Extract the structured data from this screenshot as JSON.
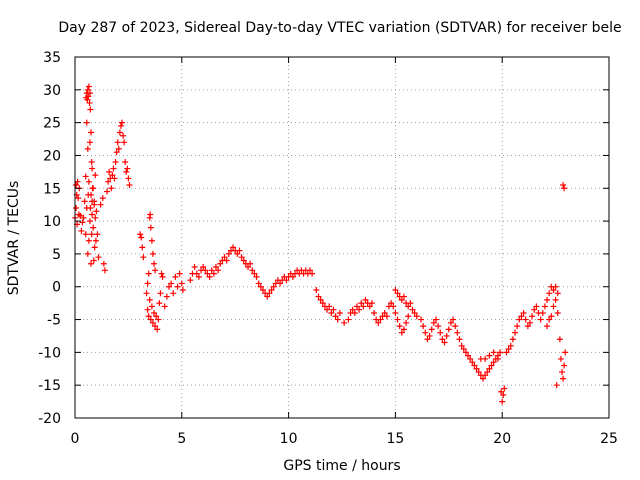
{
  "chart_data": {
    "type": "scatter",
    "title": "Day 287 of 2023, Sidereal Day-to-day VTEC variation (SDTVAR) for receiver bele",
    "xlabel": "GPS time / hours",
    "ylabel": "SDTVAR / TECUs",
    "xlim": [
      0,
      25
    ],
    "ylim": [
      -20,
      35
    ],
    "xticks": [
      "0",
      "5",
      "10",
      "15",
      "20",
      "25"
    ],
    "yticks": [
      "-20",
      "-15",
      "-10",
      "-5",
      "0",
      "5",
      "10",
      "15",
      "20",
      "25",
      "30",
      "35"
    ],
    "grid": true,
    "marker": "+",
    "color": "#ff0000",
    "series": [
      {
        "name": "SDTVAR",
        "points": [
          [
            0.0,
            10.5
          ],
          [
            0.05,
            12
          ],
          [
            0.05,
            15.5
          ],
          [
            0.08,
            14
          ],
          [
            0.1,
            9.5
          ],
          [
            0.12,
            16
          ],
          [
            0.15,
            13.5
          ],
          [
            0.18,
            11
          ],
          [
            0.2,
            15
          ],
          [
            0.25,
            10.8
          ],
          [
            0.3,
            8.5
          ],
          [
            0.35,
            9.8
          ],
          [
            0.4,
            10.5
          ],
          [
            0.45,
            13
          ],
          [
            0.5,
            16.8
          ],
          [
            0.52,
            28.8
          ],
          [
            0.55,
            29.5
          ],
          [
            0.58,
            28.5
          ],
          [
            0.6,
            30
          ],
          [
            0.62,
            29
          ],
          [
            0.65,
            30.5
          ],
          [
            0.68,
            28
          ],
          [
            0.7,
            29.5
          ],
          [
            0.72,
            27
          ],
          [
            0.75,
            23.5
          ],
          [
            0.78,
            19
          ],
          [
            0.8,
            18
          ],
          [
            0.5,
            8
          ],
          [
            0.55,
            12
          ],
          [
            0.6,
            5
          ],
          [
            0.62,
            14
          ],
          [
            0.65,
            7
          ],
          [
            0.7,
            10
          ],
          [
            0.72,
            12
          ],
          [
            0.75,
            3.5
          ],
          [
            0.78,
            8
          ],
          [
            0.8,
            11
          ],
          [
            0.82,
            15
          ],
          [
            0.85,
            9
          ],
          [
            0.88,
            4
          ],
          [
            0.9,
            13
          ],
          [
            0.92,
            6
          ],
          [
            0.95,
            10.5
          ],
          [
            0.98,
            7
          ],
          [
            1.0,
            11.5
          ],
          [
            1.05,
            8
          ],
          [
            1.1,
            4.5
          ],
          [
            0.55,
            25
          ],
          [
            0.6,
            21
          ],
          [
            0.65,
            16
          ],
          [
            0.7,
            22
          ],
          [
            0.75,
            14
          ],
          [
            0.8,
            13
          ],
          [
            0.85,
            15
          ],
          [
            0.9,
            12.5
          ],
          [
            0.95,
            17
          ],
          [
            1.2,
            12.5
          ],
          [
            1.3,
            13.5
          ],
          [
            1.35,
            3.5
          ],
          [
            1.4,
            2.5
          ],
          [
            1.5,
            14.5
          ],
          [
            1.55,
            16
          ],
          [
            1.6,
            17.5
          ],
          [
            1.65,
            16.5
          ],
          [
            1.7,
            15
          ],
          [
            1.75,
            17
          ],
          [
            1.8,
            18
          ],
          [
            1.85,
            16.5
          ],
          [
            1.9,
            19
          ],
          [
            1.95,
            20.5
          ],
          [
            2.0,
            22
          ],
          [
            2.05,
            21
          ],
          [
            2.1,
            23.5
          ],
          [
            2.15,
            24.5
          ],
          [
            2.2,
            25
          ],
          [
            2.25,
            23
          ],
          [
            2.3,
            22
          ],
          [
            2.35,
            19
          ],
          [
            2.4,
            17.5
          ],
          [
            2.45,
            18
          ],
          [
            2.5,
            16.5
          ],
          [
            2.55,
            15.5
          ],
          [
            3.05,
            8
          ],
          [
            3.1,
            7.5
          ],
          [
            3.15,
            6
          ],
          [
            3.2,
            4.5
          ],
          [
            3.35,
            -1
          ],
          [
            3.4,
            -3.5
          ],
          [
            3.45,
            -4.5
          ],
          [
            3.5,
            -2
          ],
          [
            3.55,
            -5
          ],
          [
            3.6,
            -3
          ],
          [
            3.65,
            -5.5
          ],
          [
            3.7,
            -4
          ],
          [
            3.75,
            -6
          ],
          [
            3.8,
            -4.5
          ],
          [
            3.85,
            -6.5
          ],
          [
            3.9,
            -5
          ],
          [
            3.95,
            -2.5
          ],
          [
            4.0,
            -1
          ],
          [
            4.05,
            2
          ],
          [
            4.1,
            1.5
          ],
          [
            3.4,
            0.5
          ],
          [
            3.45,
            2
          ],
          [
            3.5,
            10.5
          ],
          [
            3.52,
            11
          ],
          [
            3.55,
            9
          ],
          [
            3.6,
            7
          ],
          [
            3.65,
            5
          ],
          [
            3.7,
            3.5
          ],
          [
            3.75,
            2.5
          ],
          [
            4.2,
            -3
          ],
          [
            4.3,
            -1.5
          ],
          [
            4.4,
            0
          ],
          [
            4.5,
            0.5
          ],
          [
            4.6,
            -1
          ],
          [
            4.7,
            1.5
          ],
          [
            4.8,
            0
          ],
          [
            4.9,
            2
          ],
          [
            5.0,
            0.5
          ],
          [
            5.05,
            -0.5
          ],
          [
            5.4,
            1
          ],
          [
            5.5,
            2
          ],
          [
            5.6,
            3
          ],
          [
            5.7,
            2
          ],
          [
            5.8,
            1.5
          ],
          [
            5.9,
            2.5
          ],
          [
            6.0,
            3
          ],
          [
            6.1,
            2.5
          ],
          [
            6.2,
            2
          ],
          [
            6.3,
            1.5
          ],
          [
            6.4,
            2.5
          ],
          [
            6.5,
            2
          ],
          [
            6.6,
            3
          ],
          [
            6.7,
            2.5
          ],
          [
            6.8,
            3.5
          ],
          [
            6.9,
            4
          ],
          [
            7.0,
            4.5
          ],
          [
            7.1,
            4
          ],
          [
            7.2,
            5
          ],
          [
            7.3,
            5.5
          ],
          [
            7.4,
            6
          ],
          [
            7.5,
            5.5
          ],
          [
            7.6,
            5
          ],
          [
            7.7,
            5.5
          ],
          [
            7.8,
            4.5
          ],
          [
            7.9,
            4
          ],
          [
            8.0,
            3.5
          ],
          [
            8.1,
            3
          ],
          [
            8.2,
            3.5
          ],
          [
            8.3,
            2.5
          ],
          [
            8.4,
            2
          ],
          [
            8.5,
            1.5
          ],
          [
            8.6,
            0.5
          ],
          [
            8.7,
            0
          ],
          [
            8.8,
            -0.5
          ],
          [
            8.9,
            -1
          ],
          [
            9.0,
            -1.5
          ],
          [
            9.1,
            -1
          ],
          [
            9.2,
            -0.5
          ],
          [
            9.3,
            0
          ],
          [
            9.4,
            0.5
          ],
          [
            9.5,
            1
          ],
          [
            9.6,
            0.5
          ],
          [
            9.7,
            1
          ],
          [
            9.8,
            1.5
          ],
          [
            9.9,
            1
          ],
          [
            10.0,
            1.5
          ],
          [
            10.1,
            2
          ],
          [
            10.2,
            1.5
          ],
          [
            10.3,
            2
          ],
          [
            10.4,
            2.5
          ],
          [
            10.5,
            2
          ],
          [
            10.6,
            2.5
          ],
          [
            10.7,
            2
          ],
          [
            10.8,
            2.5
          ],
          [
            10.9,
            2
          ],
          [
            11.0,
            2.5
          ],
          [
            11.1,
            2
          ],
          [
            11.3,
            -0.5
          ],
          [
            11.4,
            -1.5
          ],
          [
            11.5,
            -2
          ],
          [
            11.6,
            -2.5
          ],
          [
            11.7,
            -3
          ],
          [
            11.8,
            -3.5
          ],
          [
            11.9,
            -3
          ],
          [
            12.0,
            -4
          ],
          [
            12.1,
            -3.5
          ],
          [
            12.2,
            -4.5
          ],
          [
            12.3,
            -5
          ],
          [
            12.4,
            -4
          ],
          [
            12.6,
            -5.5
          ],
          [
            12.8,
            -5
          ],
          [
            12.9,
            -4
          ],
          [
            13.0,
            -3.5
          ],
          [
            13.1,
            -4
          ],
          [
            13.2,
            -3
          ],
          [
            13.3,
            -3.5
          ],
          [
            13.4,
            -2.5
          ],
          [
            13.5,
            -3
          ],
          [
            13.6,
            -2
          ],
          [
            13.7,
            -2.5
          ],
          [
            13.8,
            -3
          ],
          [
            13.9,
            -2.5
          ],
          [
            14.0,
            -4
          ],
          [
            14.1,
            -5
          ],
          [
            14.2,
            -5.5
          ],
          [
            14.3,
            -5
          ],
          [
            14.4,
            -4.5
          ],
          [
            14.5,
            -4
          ],
          [
            14.6,
            -4.5
          ],
          [
            14.7,
            -3
          ],
          [
            14.8,
            -2.5
          ],
          [
            14.9,
            -3
          ],
          [
            15.0,
            -4
          ],
          [
            15.1,
            -5
          ],
          [
            15.2,
            -6
          ],
          [
            15.3,
            -7
          ],
          [
            15.4,
            -6.5
          ],
          [
            15.5,
            -5.5
          ],
          [
            15.6,
            -4.5
          ],
          [
            15.0,
            -0.5
          ],
          [
            15.1,
            -1
          ],
          [
            15.2,
            -1.5
          ],
          [
            15.3,
            -2
          ],
          [
            15.4,
            -1.5
          ],
          [
            15.5,
            -2.5
          ],
          [
            15.6,
            -3
          ],
          [
            15.7,
            -2.5
          ],
          [
            15.8,
            -3.5
          ],
          [
            15.9,
            -4
          ],
          [
            16.0,
            -4.5
          ],
          [
            16.2,
            -5
          ],
          [
            16.3,
            -6
          ],
          [
            16.4,
            -7
          ],
          [
            16.5,
            -8
          ],
          [
            16.6,
            -7.5
          ],
          [
            16.7,
            -6.5
          ],
          [
            16.8,
            -5.5
          ],
          [
            16.9,
            -5
          ],
          [
            17.0,
            -6
          ],
          [
            17.1,
            -7
          ],
          [
            17.2,
            -8
          ],
          [
            17.3,
            -8.5
          ],
          [
            17.4,
            -7.5
          ],
          [
            17.5,
            -6.5
          ],
          [
            17.6,
            -5.5
          ],
          [
            17.7,
            -5
          ],
          [
            17.8,
            -6
          ],
          [
            17.9,
            -7
          ],
          [
            18.0,
            -8
          ],
          [
            18.1,
            -9
          ],
          [
            18.2,
            -9.5
          ],
          [
            18.3,
            -10
          ],
          [
            18.4,
            -10.5
          ],
          [
            18.5,
            -11
          ],
          [
            18.6,
            -11.5
          ],
          [
            18.7,
            -12
          ],
          [
            18.8,
            -12.5
          ],
          [
            18.9,
            -13
          ],
          [
            19.0,
            -13.5
          ],
          [
            19.1,
            -14
          ],
          [
            19.2,
            -13.5
          ],
          [
            19.3,
            -13
          ],
          [
            19.4,
            -12.5
          ],
          [
            19.5,
            -12
          ],
          [
            19.6,
            -11.5
          ],
          [
            19.7,
            -11
          ],
          [
            19.8,
            -10.5
          ],
          [
            19.9,
            -10
          ],
          [
            19.0,
            -11
          ],
          [
            19.2,
            -11
          ],
          [
            19.4,
            -10.5
          ],
          [
            19.6,
            -10
          ],
          [
            19.8,
            -11
          ],
          [
            19.95,
            -16
          ],
          [
            20.0,
            -17.5
          ],
          [
            20.05,
            -16.5
          ],
          [
            20.1,
            -15.5
          ],
          [
            20.2,
            -10
          ],
          [
            20.3,
            -9.5
          ],
          [
            20.4,
            -9
          ],
          [
            20.5,
            -8
          ],
          [
            20.6,
            -7
          ],
          [
            20.7,
            -6
          ],
          [
            20.8,
            -5
          ],
          [
            20.9,
            -4.5
          ],
          [
            21.0,
            -4
          ],
          [
            21.1,
            -5
          ],
          [
            21.2,
            -6
          ],
          [
            21.3,
            -5.5
          ],
          [
            21.4,
            -4.5
          ],
          [
            21.5,
            -3.5
          ],
          [
            21.6,
            -3
          ],
          [
            21.7,
            -4
          ],
          [
            21.8,
            -5
          ],
          [
            21.9,
            -4
          ],
          [
            22.0,
            -3
          ],
          [
            22.1,
            -2
          ],
          [
            22.2,
            -1
          ],
          [
            22.3,
            0
          ],
          [
            22.4,
            -0.5
          ],
          [
            22.5,
            0
          ],
          [
            22.6,
            -1
          ],
          [
            22.1,
            -6
          ],
          [
            22.2,
            -5
          ],
          [
            22.3,
            -4.5
          ],
          [
            22.4,
            -3
          ],
          [
            22.5,
            -2
          ],
          [
            22.6,
            -4
          ],
          [
            22.7,
            -8
          ],
          [
            22.75,
            -11
          ],
          [
            22.8,
            -13
          ],
          [
            22.85,
            -14
          ],
          [
            22.9,
            -12
          ],
          [
            22.95,
            -10
          ],
          [
            22.55,
            -15
          ],
          [
            22.85,
            15.5
          ],
          [
            22.9,
            15
          ]
        ]
      }
    ]
  }
}
